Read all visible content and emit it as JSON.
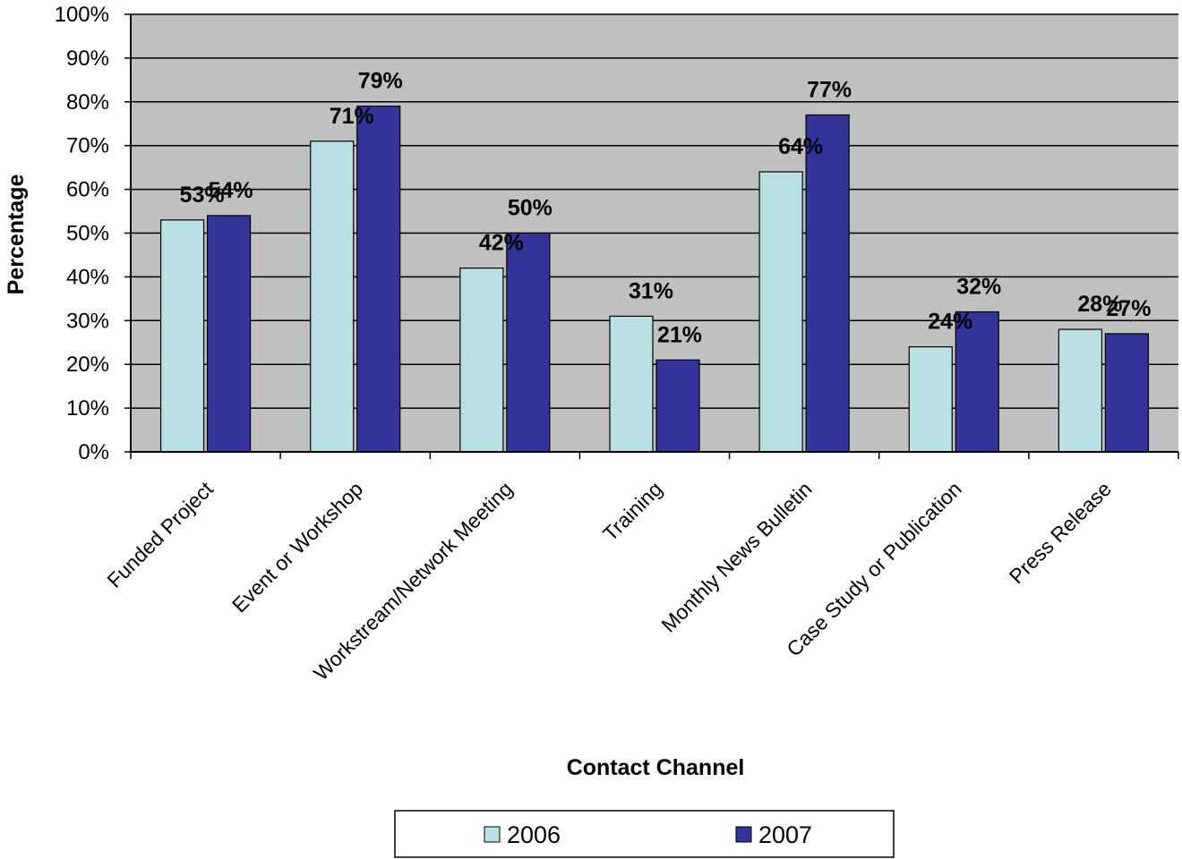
{
  "chart_data": {
    "type": "bar",
    "categories": [
      "Funded Project",
      "Event or Workshop",
      "Workstream/Network Meeting",
      "Training",
      "Monthly News Bulletin",
      "Case Study or Publication",
      "Press Release"
    ],
    "series": [
      {
        "name": "2006",
        "values": [
          53,
          71,
          42,
          31,
          64,
          24,
          28
        ],
        "labels": [
          "53%",
          "71%",
          "42%",
          "31%",
          "64%",
          "24%",
          "28%"
        ],
        "color": "#b9e1e3"
      },
      {
        "name": "2007",
        "values": [
          54,
          79,
          50,
          21,
          77,
          32,
          27
        ],
        "labels": [
          "54%",
          "79%",
          "50%",
          "21%",
          "77%",
          "32%",
          "27%"
        ],
        "color": "#333399"
      }
    ],
    "xlabel": "Contact Channel",
    "ylabel": "Percentage",
    "ylim": [
      0,
      100
    ],
    "yticks": [
      "0%",
      "10%",
      "20%",
      "30%",
      "40%",
      "50%",
      "60%",
      "70%",
      "80%",
      "90%",
      "100%"
    ],
    "plot_background": "#c0c0c0",
    "grid": true,
    "legend_position": "bottom"
  }
}
